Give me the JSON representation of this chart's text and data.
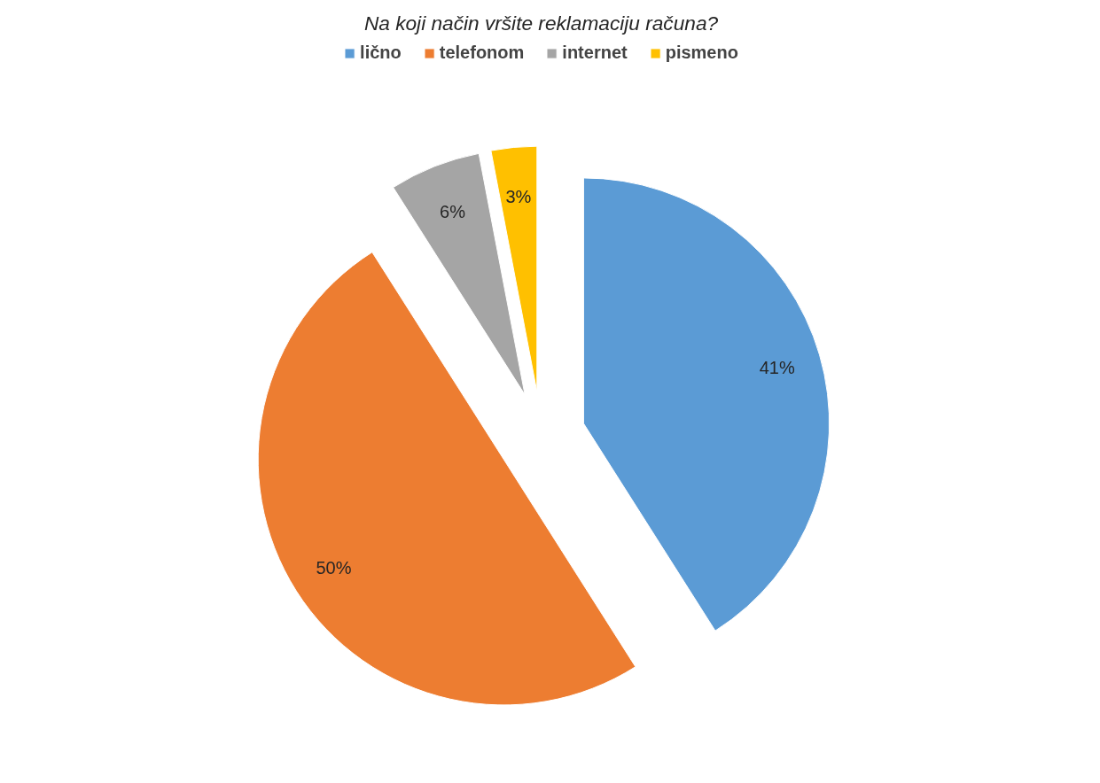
{
  "chart_data": {
    "type": "pie",
    "title": "Na koji način vršite reklamaciju računa?",
    "categories": [
      "lično",
      "telefonom",
      "internet",
      "pismeno"
    ],
    "values": [
      41,
      50,
      6,
      3
    ],
    "colors": [
      "#5b9bd5",
      "#ed7d31",
      "#a5a5a5",
      "#ffc000"
    ],
    "value_labels": [
      "41%",
      "50%",
      "6%",
      "3%"
    ],
    "legend": "top"
  }
}
